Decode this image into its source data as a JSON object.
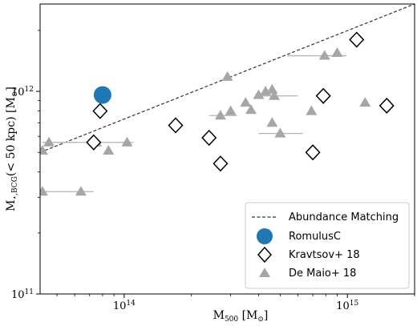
{
  "chart_data": {
    "type": "scatter",
    "xlabel_main": "M",
    "xlabel_sub": "500",
    "xlabel_unit": " [M",
    "xlabel_unit_symbol": "⊙",
    "xlabel_close": "]",
    "ylabel_main": "M",
    "ylabel_sub": "⋆,BCG",
    "ylabel_rest": "(< 50 kpc) [M",
    "ylabel_unit_symbol": "⊙",
    "ylabel_close": "]",
    "xscale": "log",
    "yscale": "log",
    "xlim": [
      42000000000000,
      2000000000000000
    ],
    "ylim": [
      100000000000,
      2700000000000
    ],
    "x_ticks": [
      {
        "value": 100000000000000,
        "base": "10",
        "exp": "14"
      },
      {
        "value": 1000000000000000,
        "base": "10",
        "exp": "15"
      }
    ],
    "y_ticks": [
      {
        "value": 100000000000,
        "base": "10",
        "exp": "11"
      },
      {
        "value": 1000000000000,
        "base": "10",
        "exp": "12"
      }
    ],
    "legend_position": "lower-right",
    "grid": false,
    "series": [
      {
        "name": "Abundance Matching",
        "kind": "line",
        "color": "#333333",
        "style": "dashed",
        "x": [
          42000000000000,
          2000000000000000
        ],
        "y": [
          500000000000,
          2700000000000
        ]
      },
      {
        "name": "RomulusC",
        "kind": "marker",
        "marker": "circle",
        "color": "#1f77b4",
        "x": [
          80000000000000
        ],
        "y": [
          960000000000
        ]
      },
      {
        "name": "Kravtsov+ 18",
        "kind": "marker",
        "marker": "diamond",
        "color": "#000000",
        "x": [
          78000000000000,
          73000000000000,
          170000000000000,
          240000000000000,
          270000000000000,
          780000000000000,
          700000000000000,
          1100000000000000,
          1500000000000000
        ],
        "y": [
          800000000000,
          560000000000,
          680000000000,
          590000000000,
          440000000000,
          950000000000,
          500000000000,
          1800000000000,
          850000000000
        ]
      },
      {
        "name": "De Maio+ 18",
        "kind": "marker",
        "marker": "triangle",
        "color": "#a6a6a6",
        "x": [
          43000000000000,
          46000000000000,
          43000000000000,
          64000000000000,
          75000000000000,
          85000000000000,
          103000000000000,
          290000000000000,
          270000000000000,
          300000000000000,
          350000000000000,
          370000000000000,
          400000000000000,
          430000000000000,
          460000000000000,
          470000000000000,
          460000000000000,
          500000000000000,
          690000000000000,
          790000000000000,
          900000000000000,
          1200000000000000
        ],
        "y": [
          510000000000,
          560000000000,
          320000000000,
          320000000000,
          560000000000,
          510000000000,
          560000000000,
          1180000000000,
          760000000000,
          800000000000,
          880000000000,
          810000000000,
          960000000000,
          1000000000000,
          1020000000000,
          950000000000,
          700000000000,
          620000000000,
          800000000000,
          1500000000000,
          1550000000000,
          880000000000
        ],
        "xerr_low": [
          0,
          3000000000000,
          0,
          0,
          25000000000000,
          0,
          0,
          0,
          30000000000000,
          0,
          0,
          0,
          0,
          0,
          0,
          70000000000000,
          0,
          100000000000000,
          0,
          250000000000000,
          0,
          0
        ],
        "xerr_high": [
          0,
          15000000000000,
          30000000000000,
          0,
          35000000000000,
          0,
          0,
          0,
          50000000000000,
          0,
          0,
          0,
          0,
          0,
          0,
          130000000000000,
          0,
          130000000000000,
          0,
          200000000000000,
          0,
          0
        ]
      }
    ]
  }
}
